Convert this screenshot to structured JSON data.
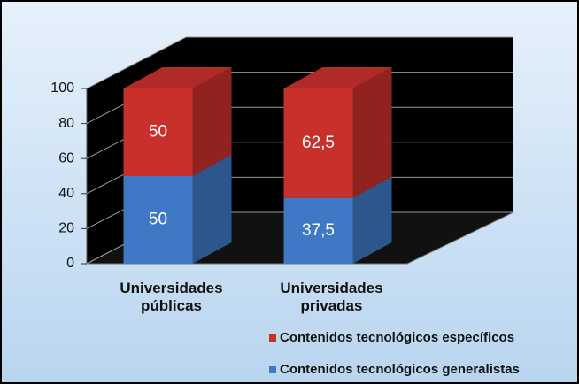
{
  "chart_data": {
    "type": "bar3d_stacked",
    "categories": [
      "Universidades públicas",
      "Universidades privadas"
    ],
    "series": [
      {
        "name": "Contenidos tecnológicos generalistas",
        "color": "#3f78c4",
        "values": [
          50,
          37.5
        ],
        "value_labels": [
          "50",
          "37,5"
        ]
      },
      {
        "name": "Contenidos tecnológicos específicos",
        "color": "#c8302c",
        "values": [
          50,
          62.5
        ],
        "value_labels": [
          "50",
          "62,5"
        ]
      }
    ],
    "ylim": [
      0,
      100
    ],
    "yticks": [
      0,
      20,
      40,
      60,
      80,
      100
    ],
    "grid": true
  }
}
